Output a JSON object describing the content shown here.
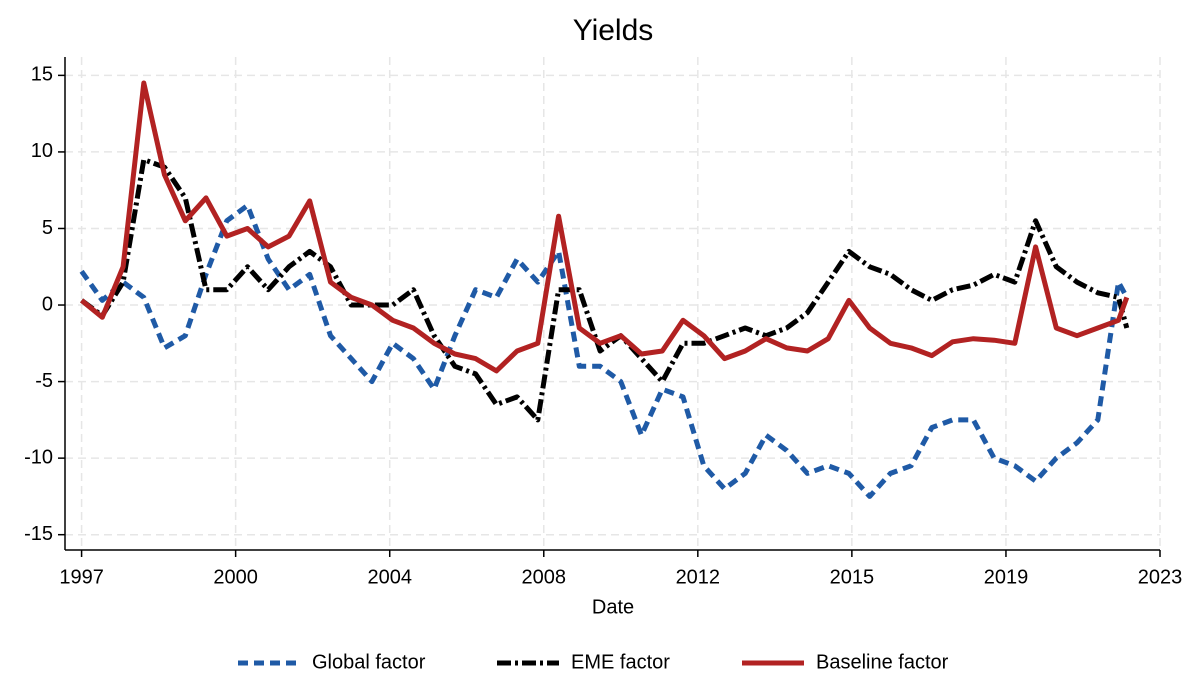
{
  "chart_data": {
    "type": "line",
    "title": "Yields",
    "x_label": "Date",
    "x": [
      1997.0,
      1997.5,
      1998.0,
      1998.5,
      1999.0,
      1999.5,
      2000.0,
      2000.5,
      2001.0,
      2001.5,
      2002.0,
      2002.5,
      2003.0,
      2003.5,
      2004.0,
      2004.5,
      2005.0,
      2005.5,
      2006.0,
      2006.5,
      2007.0,
      2007.5,
      2008.0,
      2008.5,
      2009.0,
      2009.5,
      2010.0,
      2010.5,
      2011.0,
      2011.5,
      2012.0,
      2012.5,
      2013.0,
      2013.5,
      2014.0,
      2014.5,
      2015.0,
      2015.5,
      2016.0,
      2016.5,
      2017.0,
      2017.5,
      2018.0,
      2018.5,
      2019.0,
      2019.5,
      2020.0,
      2020.5,
      2021.0,
      2021.5,
      2022.0,
      2022.2
    ],
    "series": [
      {
        "name": "Global factor",
        "color": "#1f5aa6",
        "dash": "10 6",
        "values": [
          2.2,
          0.3,
          1.5,
          0.5,
          -2.8,
          -2,
          2,
          5.5,
          6.5,
          3,
          1,
          2,
          -2,
          -3.5,
          -5,
          -2.5,
          -3.5,
          -5.5,
          -2,
          1,
          0.5,
          3,
          1.5,
          3.5,
          -4,
          -4,
          -5,
          -8.5,
          -5.5,
          -6,
          -10.5,
          -12,
          -11,
          -8.5,
          -9.5,
          -11,
          -10.5,
          -11,
          -12.5,
          -11,
          -10.5,
          -8,
          -7.5,
          -7.5,
          -10,
          -10.5,
          -11.5,
          -10,
          -9,
          -7.5,
          1.5,
          0.5
        ]
      },
      {
        "name": "EME factor",
        "color": "#000000",
        "dash": "14 4 3 4",
        "values": [
          0.3,
          -0.7,
          1.5,
          9.5,
          9,
          7,
          1,
          1,
          2.5,
          1,
          2.5,
          3.5,
          2.5,
          0,
          0,
          0,
          1,
          -2,
          -4,
          -4.5,
          -6.5,
          -6,
          -7.5,
          1,
          1,
          -3,
          -2,
          -3.5,
          -5,
          -2.5,
          -2.5,
          -2,
          -1.5,
          -2,
          -1.5,
          -0.5,
          1.5,
          3.5,
          2.5,
          2,
          1,
          0.3,
          1,
          1.3,
          2,
          1.5,
          5.5,
          2.5,
          1.5,
          0.8,
          0.5,
          -1.5
        ]
      },
      {
        "name": "Baseline factor",
        "color": "#b22222",
        "dash": "none",
        "values": [
          0.3,
          -0.8,
          2.5,
          14.5,
          8.5,
          5.5,
          7,
          4.5,
          5,
          3.8,
          4.5,
          6.8,
          1.5,
          0.5,
          0,
          -1,
          -1.5,
          -2.5,
          -3.2,
          -3.5,
          -4.3,
          -3,
          -2.5,
          5.8,
          -1.5,
          -2.5,
          -2,
          -3.2,
          -3,
          -1,
          -2,
          -3.5,
          -3,
          -2.2,
          -2.8,
          -3,
          -2.2,
          0.3,
          -1.5,
          -2.5,
          -2.8,
          -3.3,
          -2.4,
          -2.2,
          -2.3,
          -2.5,
          3.8,
          -1.5,
          -2,
          -1.5,
          -1,
          0.5
        ]
      }
    ],
    "xlim": [
      1996.6,
      2023.0
    ],
    "xticks": [
      1997,
      {
        "value": 2000.714,
        "label": "2000"
      },
      {
        "value": 2004.429,
        "label": "2004"
      },
      {
        "value": 2008.143,
        "label": "2008"
      },
      {
        "value": 2011.857,
        "label": "2012"
      },
      {
        "value": 2015.571,
        "label": "2015"
      },
      {
        "value": 2019.286,
        "label": "2019"
      },
      2023
    ],
    "ylim": [
      -16,
      16.2
    ],
    "yticks": [
      15,
      10,
      5,
      0,
      -5,
      -10,
      -15
    ],
    "grid": true,
    "legend": "bottom"
  }
}
